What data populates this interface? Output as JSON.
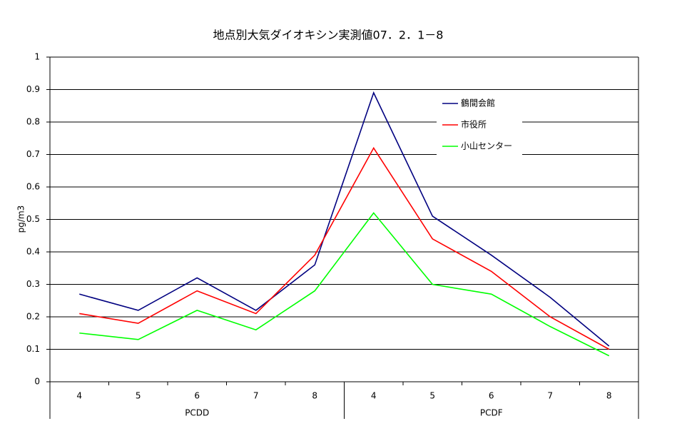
{
  "chart_data": {
    "type": "line",
    "title": "地点別大気ダイオキシン実測値07．2．1－8",
    "y_label": "pg/m3",
    "categories": [
      "4",
      "5",
      "6",
      "7",
      "8",
      "4",
      "5",
      "6",
      "7",
      "8"
    ],
    "groups": [
      "PCDD",
      "PCDF"
    ],
    "series": [
      {
        "name": "鶴間会館",
        "color": "#000080",
        "values": [
          0.27,
          0.22,
          0.32,
          0.22,
          0.36,
          0.89,
          0.51,
          0.39,
          0.26,
          0.11
        ]
      },
      {
        "name": "市役所",
        "color": "#ff0000",
        "values": [
          0.21,
          0.18,
          0.28,
          0.21,
          0.39,
          0.72,
          0.44,
          0.34,
          0.2,
          0.1
        ]
      },
      {
        "name": "小山センター",
        "color": "#00ff00",
        "values": [
          0.15,
          0.13,
          0.22,
          0.16,
          0.28,
          0.52,
          0.3,
          0.27,
          0.17,
          0.08
        ]
      }
    ],
    "ylim": [
      0,
      1
    ],
    "yticks": [
      0,
      0.1,
      0.2,
      0.3,
      0.4,
      0.5,
      0.6,
      0.7,
      0.8,
      0.9,
      1
    ],
    "grid": true,
    "legend": "upper-right"
  }
}
